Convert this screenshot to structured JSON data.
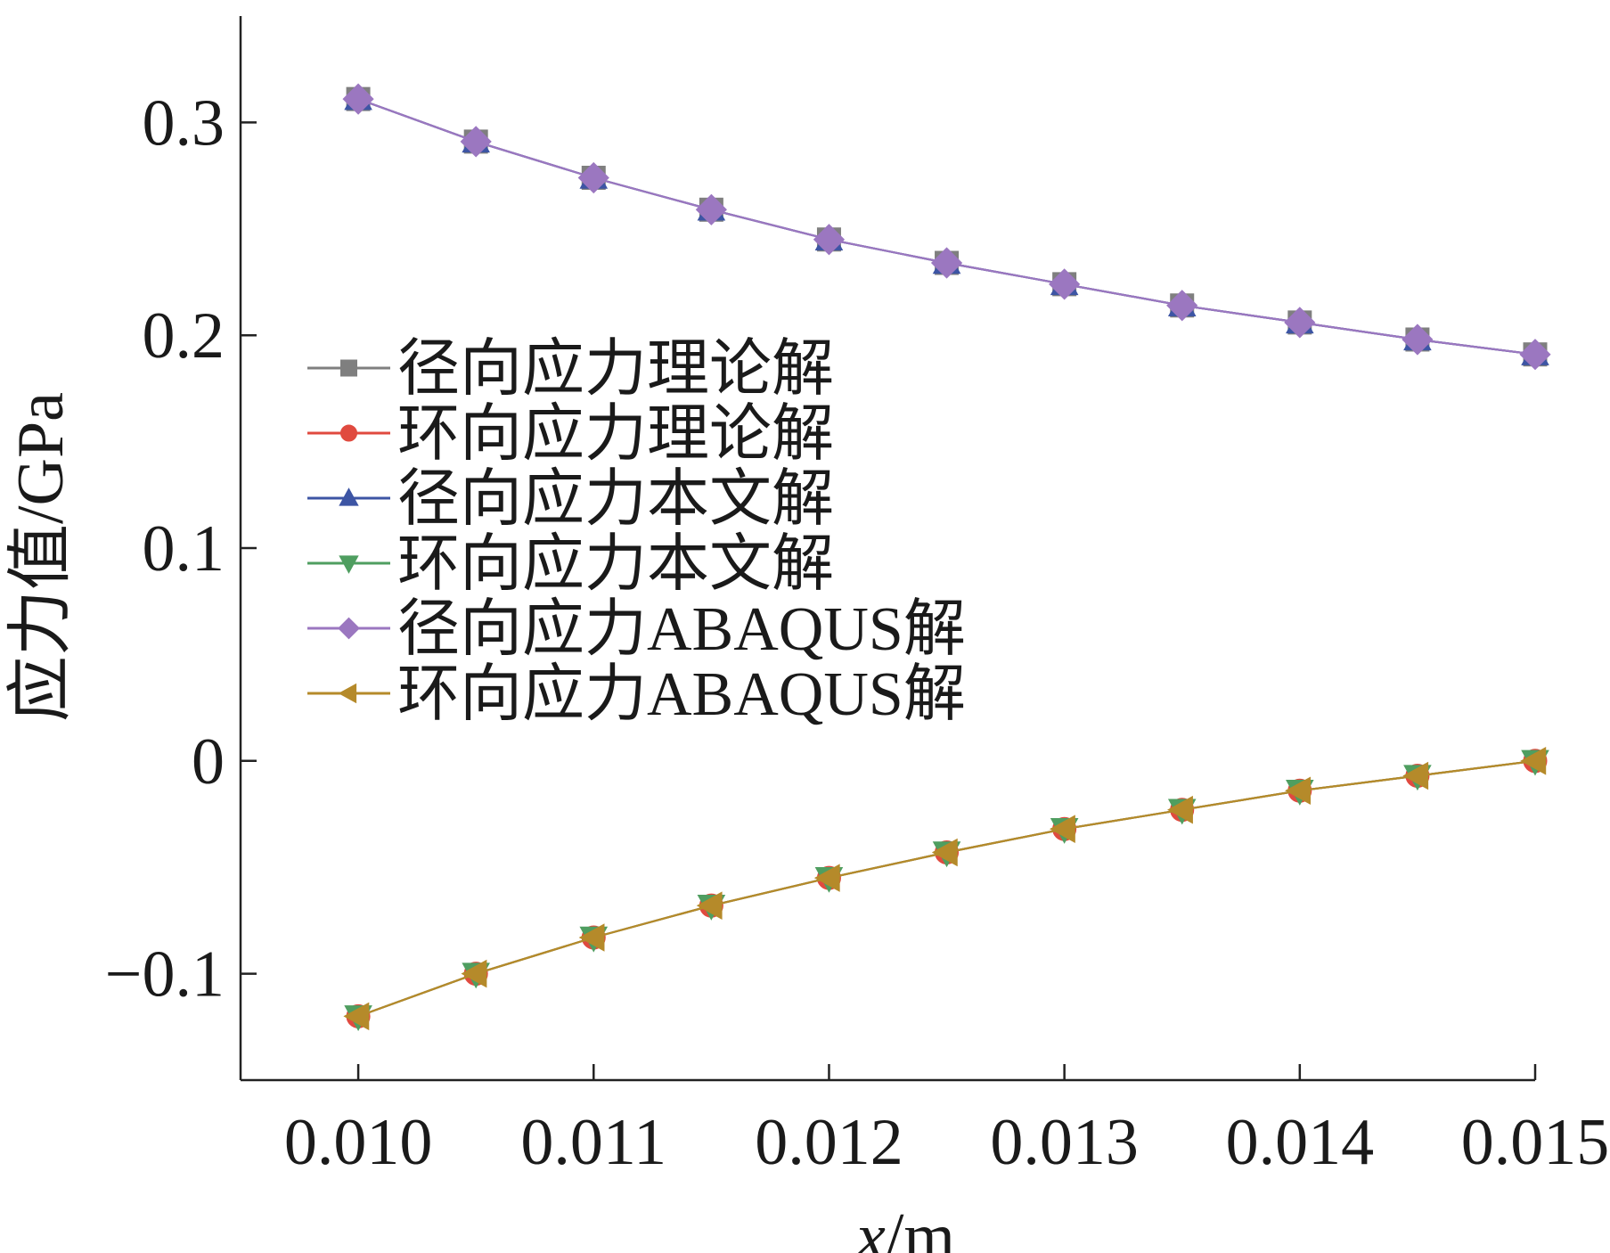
{
  "chart_data": {
    "type": "line",
    "xlabel_var": "x",
    "xlabel_unit": "/m",
    "ylabel": "应力值/GPa",
    "xlim": [
      0.0095,
      0.015
    ],
    "ylim": [
      -0.15,
      0.35
    ],
    "x_ticks": [
      {
        "value": 0.01,
        "label": "0.010"
      },
      {
        "value": 0.011,
        "label": "0.011"
      },
      {
        "value": 0.012,
        "label": "0.012"
      },
      {
        "value": 0.013,
        "label": "0.013"
      },
      {
        "value": 0.014,
        "label": "0.014"
      },
      {
        "value": 0.015,
        "label": "0.015"
      }
    ],
    "y_ticks": [
      {
        "value": -0.1,
        "label": "−0.1"
      },
      {
        "value": 0,
        "label": "0"
      },
      {
        "value": 0.1,
        "label": "0.1"
      },
      {
        "value": 0.2,
        "label": "0.2"
      },
      {
        "value": 0.3,
        "label": "0.3"
      }
    ],
    "x": [
      0.01,
      0.0105,
      0.011,
      0.0115,
      0.012,
      0.0125,
      0.013,
      0.0135,
      0.014,
      0.0145,
      0.015
    ],
    "legend_position": "center-left",
    "series": [
      {
        "name": "径向应力理论解",
        "color": "#7f7f7f",
        "marker": "square",
        "values": [
          0.311,
          0.291,
          0.274,
          0.259,
          0.245,
          0.234,
          0.224,
          0.214,
          0.206,
          0.198,
          0.191
        ]
      },
      {
        "name": "环向应力理论解",
        "color": "#e04a3f",
        "marker": "circle",
        "values": [
          -0.12,
          -0.1,
          -0.083,
          -0.068,
          -0.055,
          -0.043,
          -0.032,
          -0.023,
          -0.014,
          -0.007,
          0.0
        ]
      },
      {
        "name": "径向应力本文解",
        "color": "#3d55a4",
        "marker": "triangle-up",
        "values": [
          0.311,
          0.291,
          0.274,
          0.259,
          0.245,
          0.234,
          0.224,
          0.214,
          0.206,
          0.198,
          0.191
        ]
      },
      {
        "name": "环向应力本文解",
        "color": "#4f9e60",
        "marker": "triangle-down",
        "values": [
          -0.12,
          -0.1,
          -0.083,
          -0.068,
          -0.055,
          -0.043,
          -0.032,
          -0.023,
          -0.014,
          -0.007,
          0.0
        ]
      },
      {
        "name": "径向应力ABAQUS解",
        "color": "#9b77c0",
        "marker": "diamond",
        "values": [
          0.311,
          0.291,
          0.274,
          0.259,
          0.245,
          0.234,
          0.224,
          0.214,
          0.206,
          0.198,
          0.191
        ]
      },
      {
        "name": "环向应力ABAQUS解",
        "color": "#b58a2a",
        "marker": "triangle-left",
        "values": [
          -0.12,
          -0.1,
          -0.083,
          -0.068,
          -0.055,
          -0.043,
          -0.032,
          -0.023,
          -0.014,
          -0.007,
          0.0
        ]
      }
    ]
  }
}
